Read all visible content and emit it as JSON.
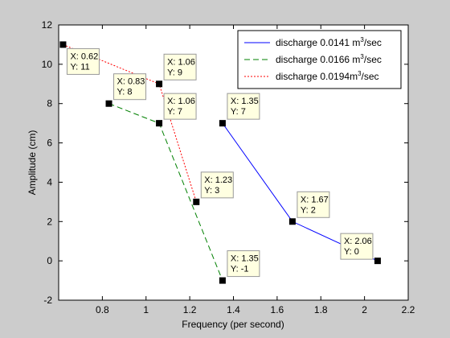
{
  "chart_data": {
    "type": "line",
    "xlabel": "Frequency (per second)",
    "ylabel": "Amplitude (cm)",
    "xlim": [
      0.6,
      2.2
    ],
    "ylim": [
      -2,
      12
    ],
    "xticks": [
      "0.8",
      "1",
      "1.2",
      "1.4",
      "1.6",
      "1.8",
      "2",
      "2.2"
    ],
    "yticks": [
      "-2",
      "0",
      "2",
      "4",
      "6",
      "8",
      "10",
      "12"
    ],
    "grid": false,
    "legend_position": "top-right",
    "series": [
      {
        "name": "discharge 0.0141 m",
        "sup": "3",
        "suffix": "/sec",
        "color": "#0000ff",
        "dash": "solid",
        "points": [
          {
            "x": 1.35,
            "y": 7
          },
          {
            "x": 1.67,
            "y": 2
          },
          {
            "x": 2.06,
            "y": 0
          }
        ]
      },
      {
        "name": "discharge 0.0166 m",
        "sup": "3",
        "suffix": "/sec",
        "color": "#008000",
        "dash": "dashed",
        "points": [
          {
            "x": 0.83,
            "y": 8
          },
          {
            "x": 1.06,
            "y": 7
          },
          {
            "x": 1.35,
            "y": -1
          }
        ]
      },
      {
        "name": "discharge 0.0194m",
        "sup": "3",
        "suffix": "/sec",
        "color": "#ff0000",
        "dash": "dotted",
        "points": [
          {
            "x": 0.62,
            "y": 11
          },
          {
            "x": 1.06,
            "y": 9
          },
          {
            "x": 1.23,
            "y": 3
          }
        ]
      }
    ],
    "datatips": [
      {
        "xl": "X: 0.62",
        "yl": "Y: 11",
        "px": 0.62,
        "py": 11,
        "side": "below-right"
      },
      {
        "xl": "X: 1.06",
        "yl": "Y: 9",
        "px": 1.06,
        "py": 9,
        "side": "above-right"
      },
      {
        "xl": "X: 0.83",
        "yl": "Y: 8",
        "px": 0.83,
        "py": 8,
        "side": "above-right"
      },
      {
        "xl": "X: 1.06",
        "yl": "Y: 7",
        "px": 1.06,
        "py": 7,
        "side": "above-right"
      },
      {
        "xl": "X: 1.35",
        "yl": "Y: 7",
        "px": 1.35,
        "py": 7,
        "side": "above-right"
      },
      {
        "xl": "X: 1.23",
        "yl": "Y: 3",
        "px": 1.23,
        "py": 3,
        "side": "above-right"
      },
      {
        "xl": "X: 1.67",
        "yl": "Y: 2",
        "px": 1.67,
        "py": 2,
        "side": "above-right"
      },
      {
        "xl": "X: 2.06",
        "yl": "Y: 0",
        "px": 2.06,
        "py": 0,
        "side": "above-left"
      },
      {
        "xl": "X: 1.35",
        "yl": "Y: -1",
        "px": 1.35,
        "py": -1,
        "side": "above-right"
      }
    ]
  }
}
